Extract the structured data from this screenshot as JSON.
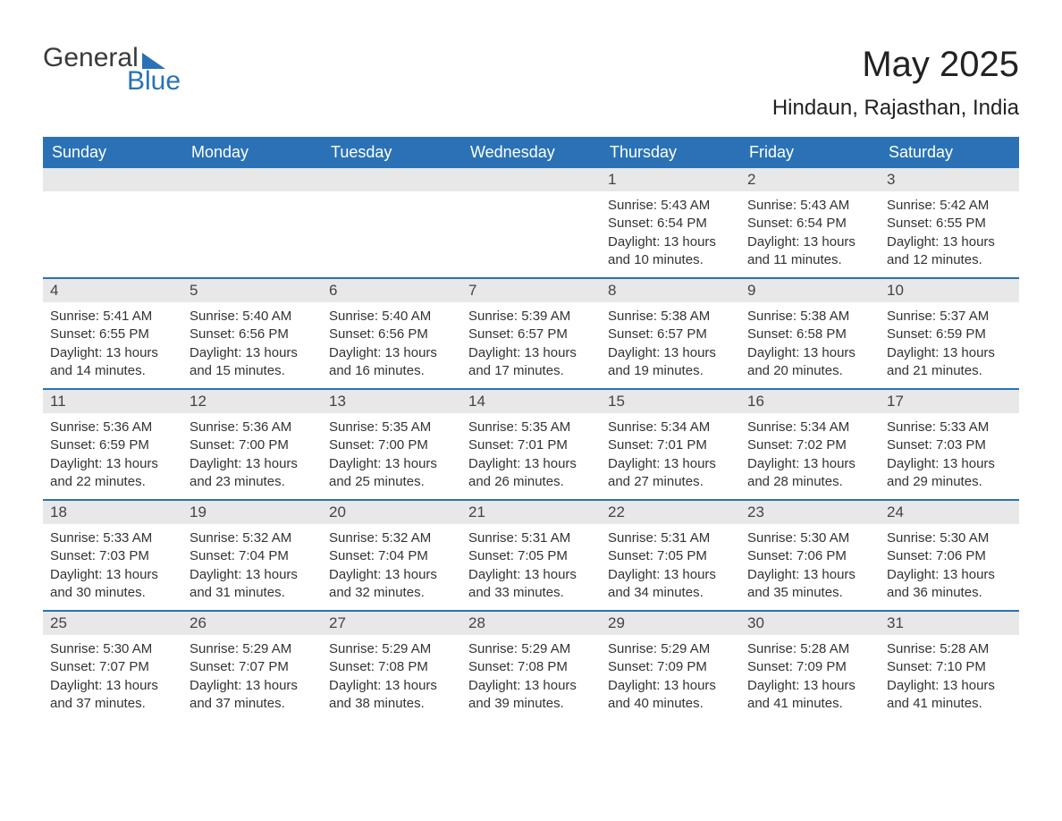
{
  "logo": {
    "text1": "General",
    "text2": "Blue"
  },
  "title": "May 2025",
  "location": "Hindaun, Rajasthan, India",
  "colors": {
    "header_bg": "#2a72b5",
    "header_text": "#ffffff",
    "daynum_bg": "#e8e8e8",
    "row_border": "#2a72b5",
    "body_text": "#333333",
    "page_bg": "#ffffff"
  },
  "weekdays": [
    "Sunday",
    "Monday",
    "Tuesday",
    "Wednesday",
    "Thursday",
    "Friday",
    "Saturday"
  ],
  "weeks": [
    [
      null,
      null,
      null,
      null,
      {
        "n": "1",
        "sunrise": "5:43 AM",
        "sunset": "6:54 PM",
        "dl1": "Daylight: 13 hours",
        "dl2": "and 10 minutes."
      },
      {
        "n": "2",
        "sunrise": "5:43 AM",
        "sunset": "6:54 PM",
        "dl1": "Daylight: 13 hours",
        "dl2": "and 11 minutes."
      },
      {
        "n": "3",
        "sunrise": "5:42 AM",
        "sunset": "6:55 PM",
        "dl1": "Daylight: 13 hours",
        "dl2": "and 12 minutes."
      }
    ],
    [
      {
        "n": "4",
        "sunrise": "5:41 AM",
        "sunset": "6:55 PM",
        "dl1": "Daylight: 13 hours",
        "dl2": "and 14 minutes."
      },
      {
        "n": "5",
        "sunrise": "5:40 AM",
        "sunset": "6:56 PM",
        "dl1": "Daylight: 13 hours",
        "dl2": "and 15 minutes."
      },
      {
        "n": "6",
        "sunrise": "5:40 AM",
        "sunset": "6:56 PM",
        "dl1": "Daylight: 13 hours",
        "dl2": "and 16 minutes."
      },
      {
        "n": "7",
        "sunrise": "5:39 AM",
        "sunset": "6:57 PM",
        "dl1": "Daylight: 13 hours",
        "dl2": "and 17 minutes."
      },
      {
        "n": "8",
        "sunrise": "5:38 AM",
        "sunset": "6:57 PM",
        "dl1": "Daylight: 13 hours",
        "dl2": "and 19 minutes."
      },
      {
        "n": "9",
        "sunrise": "5:38 AM",
        "sunset": "6:58 PM",
        "dl1": "Daylight: 13 hours",
        "dl2": "and 20 minutes."
      },
      {
        "n": "10",
        "sunrise": "5:37 AM",
        "sunset": "6:59 PM",
        "dl1": "Daylight: 13 hours",
        "dl2": "and 21 minutes."
      }
    ],
    [
      {
        "n": "11",
        "sunrise": "5:36 AM",
        "sunset": "6:59 PM",
        "dl1": "Daylight: 13 hours",
        "dl2": "and 22 minutes."
      },
      {
        "n": "12",
        "sunrise": "5:36 AM",
        "sunset": "7:00 PM",
        "dl1": "Daylight: 13 hours",
        "dl2": "and 23 minutes."
      },
      {
        "n": "13",
        "sunrise": "5:35 AM",
        "sunset": "7:00 PM",
        "dl1": "Daylight: 13 hours",
        "dl2": "and 25 minutes."
      },
      {
        "n": "14",
        "sunrise": "5:35 AM",
        "sunset": "7:01 PM",
        "dl1": "Daylight: 13 hours",
        "dl2": "and 26 minutes."
      },
      {
        "n": "15",
        "sunrise": "5:34 AM",
        "sunset": "7:01 PM",
        "dl1": "Daylight: 13 hours",
        "dl2": "and 27 minutes."
      },
      {
        "n": "16",
        "sunrise": "5:34 AM",
        "sunset": "7:02 PM",
        "dl1": "Daylight: 13 hours",
        "dl2": "and 28 minutes."
      },
      {
        "n": "17",
        "sunrise": "5:33 AM",
        "sunset": "7:03 PM",
        "dl1": "Daylight: 13 hours",
        "dl2": "and 29 minutes."
      }
    ],
    [
      {
        "n": "18",
        "sunrise": "5:33 AM",
        "sunset": "7:03 PM",
        "dl1": "Daylight: 13 hours",
        "dl2": "and 30 minutes."
      },
      {
        "n": "19",
        "sunrise": "5:32 AM",
        "sunset": "7:04 PM",
        "dl1": "Daylight: 13 hours",
        "dl2": "and 31 minutes."
      },
      {
        "n": "20",
        "sunrise": "5:32 AM",
        "sunset": "7:04 PM",
        "dl1": "Daylight: 13 hours",
        "dl2": "and 32 minutes."
      },
      {
        "n": "21",
        "sunrise": "5:31 AM",
        "sunset": "7:05 PM",
        "dl1": "Daylight: 13 hours",
        "dl2": "and 33 minutes."
      },
      {
        "n": "22",
        "sunrise": "5:31 AM",
        "sunset": "7:05 PM",
        "dl1": "Daylight: 13 hours",
        "dl2": "and 34 minutes."
      },
      {
        "n": "23",
        "sunrise": "5:30 AM",
        "sunset": "7:06 PM",
        "dl1": "Daylight: 13 hours",
        "dl2": "and 35 minutes."
      },
      {
        "n": "24",
        "sunrise": "5:30 AM",
        "sunset": "7:06 PM",
        "dl1": "Daylight: 13 hours",
        "dl2": "and 36 minutes."
      }
    ],
    [
      {
        "n": "25",
        "sunrise": "5:30 AM",
        "sunset": "7:07 PM",
        "dl1": "Daylight: 13 hours",
        "dl2": "and 37 minutes."
      },
      {
        "n": "26",
        "sunrise": "5:29 AM",
        "sunset": "7:07 PM",
        "dl1": "Daylight: 13 hours",
        "dl2": "and 37 minutes."
      },
      {
        "n": "27",
        "sunrise": "5:29 AM",
        "sunset": "7:08 PM",
        "dl1": "Daylight: 13 hours",
        "dl2": "and 38 minutes."
      },
      {
        "n": "28",
        "sunrise": "5:29 AM",
        "sunset": "7:08 PM",
        "dl1": "Daylight: 13 hours",
        "dl2": "and 39 minutes."
      },
      {
        "n": "29",
        "sunrise": "5:29 AM",
        "sunset": "7:09 PM",
        "dl1": "Daylight: 13 hours",
        "dl2": "and 40 minutes."
      },
      {
        "n": "30",
        "sunrise": "5:28 AM",
        "sunset": "7:09 PM",
        "dl1": "Daylight: 13 hours",
        "dl2": "and 41 minutes."
      },
      {
        "n": "31",
        "sunrise": "5:28 AM",
        "sunset": "7:10 PM",
        "dl1": "Daylight: 13 hours",
        "dl2": "and 41 minutes."
      }
    ]
  ],
  "labels": {
    "sunrise": "Sunrise: ",
    "sunset": "Sunset: "
  }
}
